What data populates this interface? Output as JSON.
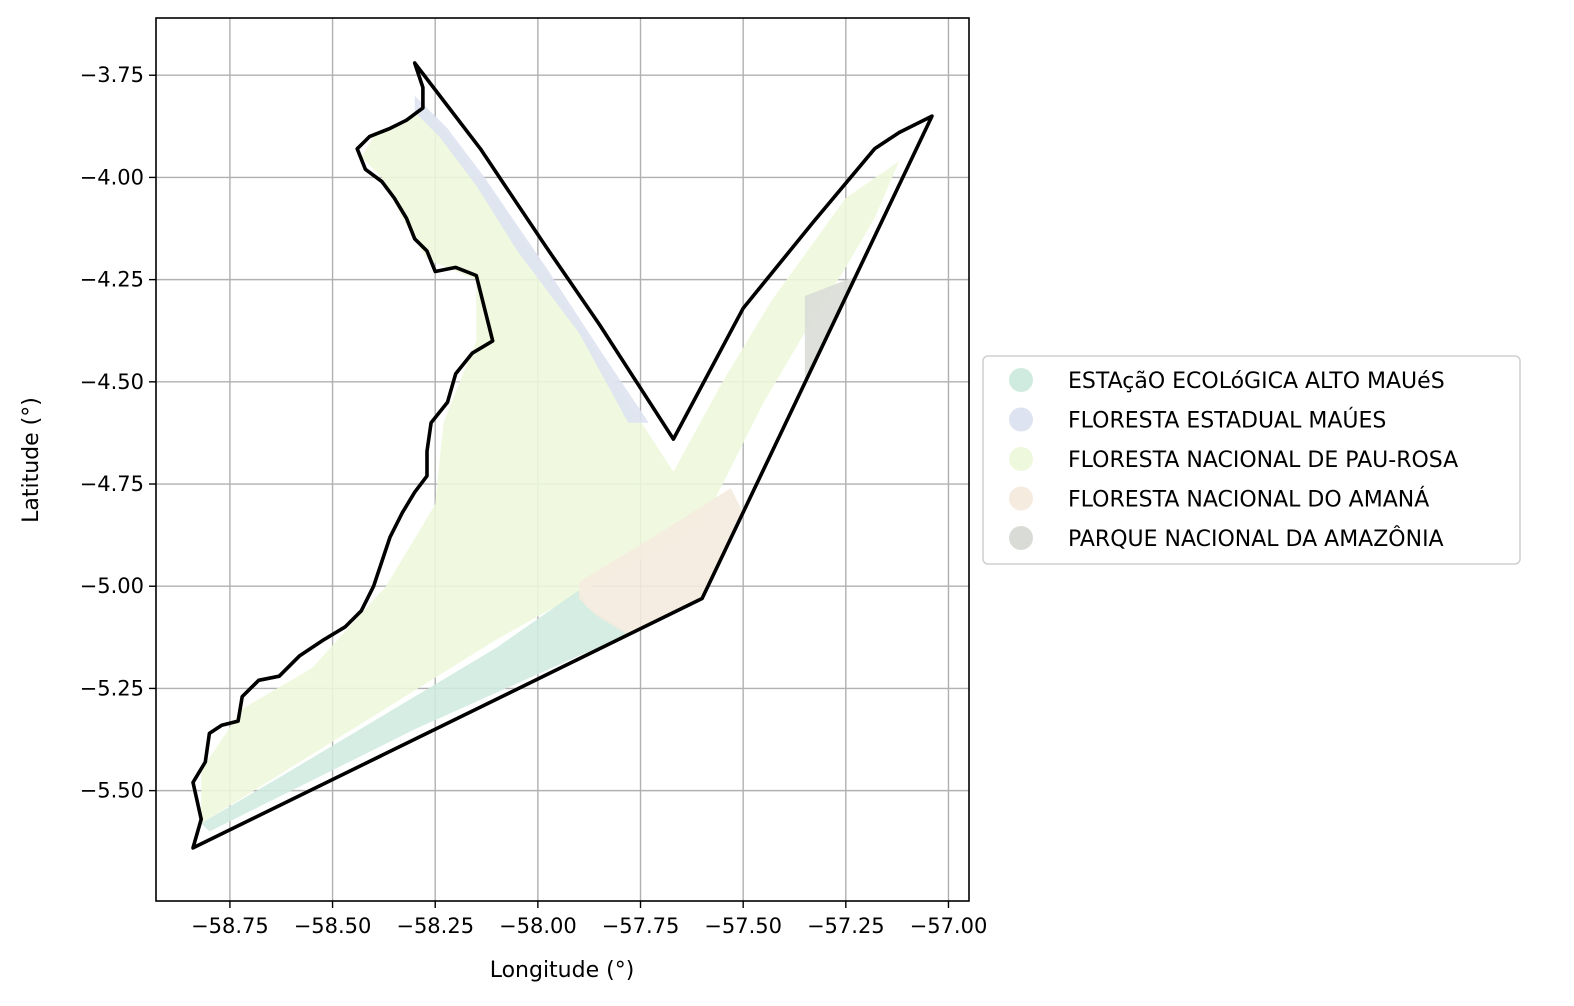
{
  "map": {
    "xlabel": "Longitude (°)",
    "ylabel": "Latitude (°)",
    "xlim": [
      -58.93,
      -56.95
    ],
    "ylim": [
      -5.77,
      -3.61
    ],
    "grid": true,
    "legend_placement": "center-right, outside plot",
    "x_ticks": [
      {
        "value": -58.75,
        "label": "−58.75"
      },
      {
        "value": -58.5,
        "label": "−58.50"
      },
      {
        "value": -58.25,
        "label": "−58.25"
      },
      {
        "value": -58.0,
        "label": "−58.00"
      },
      {
        "value": -57.75,
        "label": "−57.75"
      },
      {
        "value": -57.5,
        "label": "−57.50"
      },
      {
        "value": -57.25,
        "label": "−57.25"
      },
      {
        "value": -57.0,
        "label": "−57.00"
      }
    ],
    "y_ticks": [
      {
        "value": -3.75,
        "label": "−3.75"
      },
      {
        "value": -4.0,
        "label": "−4.00"
      },
      {
        "value": -4.25,
        "label": "−4.25"
      },
      {
        "value": -4.5,
        "label": "−4.50"
      },
      {
        "value": -4.75,
        "label": "−4.75"
      },
      {
        "value": -5.0,
        "label": "−5.00"
      },
      {
        "value": -5.25,
        "label": "−5.25"
      },
      {
        "value": -5.5,
        "label": "−5.50"
      }
    ],
    "areas": [
      {
        "name": "FLORESTA NACIONAL DE PAU-ROSA",
        "color": "#eef8dc",
        "polygon": [
          [
            -58.27,
            -3.83
          ],
          [
            -58.4,
            -3.9
          ],
          [
            -58.43,
            -3.95
          ],
          [
            -58.38,
            -4.0
          ],
          [
            -58.33,
            -4.1
          ],
          [
            -58.27,
            -4.2
          ],
          [
            -58.15,
            -4.25
          ],
          [
            -58.15,
            -4.4
          ],
          [
            -58.23,
            -4.6
          ],
          [
            -58.25,
            -4.8
          ],
          [
            -58.37,
            -5.0
          ],
          [
            -58.55,
            -5.2
          ],
          [
            -58.72,
            -5.3
          ],
          [
            -58.82,
            -5.45
          ],
          [
            -58.82,
            -5.58
          ],
          [
            -58.1,
            -5.13
          ],
          [
            -57.6,
            -4.85
          ],
          [
            -57.45,
            -4.55
          ],
          [
            -57.35,
            -4.38
          ],
          [
            -57.25,
            -4.22
          ],
          [
            -57.18,
            -4.1
          ],
          [
            -57.12,
            -3.96
          ],
          [
            -57.25,
            -4.05
          ],
          [
            -57.43,
            -4.3
          ],
          [
            -57.55,
            -4.5
          ],
          [
            -57.67,
            -4.72
          ],
          [
            -57.78,
            -4.55
          ],
          [
            -57.95,
            -4.28
          ],
          [
            -58.1,
            -4.05
          ],
          [
            -58.23,
            -3.88
          ]
        ]
      },
      {
        "name": "FLORESTA ESTADUAL MAÚES",
        "color": "#dde3f0",
        "polygon": [
          [
            -58.3,
            -3.8
          ],
          [
            -58.22,
            -3.88
          ],
          [
            -58.13,
            -4.0
          ],
          [
            -57.98,
            -4.22
          ],
          [
            -57.85,
            -4.42
          ],
          [
            -57.73,
            -4.6
          ],
          [
            -57.78,
            -4.6
          ],
          [
            -57.9,
            -4.38
          ],
          [
            -58.05,
            -4.18
          ],
          [
            -58.15,
            -4.02
          ],
          [
            -58.24,
            -3.9
          ],
          [
            -58.3,
            -3.84
          ]
        ]
      },
      {
        "name": "ESTAçãO ECOLóGICA ALTO MAUéS",
        "color": "#cfebdf",
        "polygon": [
          [
            -58.82,
            -5.58
          ],
          [
            -58.6,
            -5.45
          ],
          [
            -58.35,
            -5.3
          ],
          [
            -58.1,
            -5.15
          ],
          [
            -57.9,
            -5.01
          ],
          [
            -57.88,
            -5.05
          ],
          [
            -57.8,
            -5.1
          ],
          [
            -57.78,
            -5.12
          ],
          [
            -57.9,
            -5.17
          ],
          [
            -58.3,
            -5.35
          ],
          [
            -58.8,
            -5.6
          ]
        ]
      },
      {
        "name": "FLORESTA NACIONAL DO AMANÁ",
        "color": "#f5ebde",
        "polygon": [
          [
            -57.9,
            -4.99
          ],
          [
            -57.72,
            -4.88
          ],
          [
            -57.53,
            -4.76
          ],
          [
            -57.5,
            -4.82
          ],
          [
            -57.6,
            -5.03
          ],
          [
            -57.78,
            -5.12
          ],
          [
            -57.86,
            -5.07
          ],
          [
            -57.9,
            -5.03
          ]
        ]
      },
      {
        "name": "PARQUE NACIONAL DA AMAZÔNIA",
        "color": "#d9dcd6",
        "polygon": [
          [
            -57.35,
            -4.29
          ],
          [
            -57.22,
            -4.24
          ],
          [
            -57.35,
            -4.5
          ]
        ]
      }
    ],
    "boundary": [
      [
        -58.84,
        -5.64
      ],
      [
        -58.82,
        -5.57
      ],
      [
        -58.84,
        -5.48
      ],
      [
        -58.81,
        -5.43
      ],
      [
        -58.8,
        -5.36
      ],
      [
        -58.77,
        -5.34
      ],
      [
        -58.73,
        -5.33
      ],
      [
        -58.72,
        -5.27
      ],
      [
        -58.68,
        -5.23
      ],
      [
        -58.63,
        -5.22
      ],
      [
        -58.58,
        -5.17
      ],
      [
        -58.52,
        -5.13
      ],
      [
        -58.47,
        -5.1
      ],
      [
        -58.43,
        -5.06
      ],
      [
        -58.4,
        -5.0
      ],
      [
        -58.38,
        -4.94
      ],
      [
        -58.36,
        -4.88
      ],
      [
        -58.33,
        -4.82
      ],
      [
        -58.3,
        -4.77
      ],
      [
        -58.27,
        -4.73
      ],
      [
        -58.27,
        -4.67
      ],
      [
        -58.26,
        -4.6
      ],
      [
        -58.22,
        -4.55
      ],
      [
        -58.2,
        -4.48
      ],
      [
        -58.16,
        -4.43
      ],
      [
        -58.11,
        -4.4
      ],
      [
        -58.12,
        -4.36
      ],
      [
        -58.15,
        -4.24
      ],
      [
        -58.2,
        -4.22
      ],
      [
        -58.25,
        -4.23
      ],
      [
        -58.27,
        -4.18
      ],
      [
        -58.3,
        -4.15
      ],
      [
        -58.32,
        -4.1
      ],
      [
        -58.35,
        -4.05
      ],
      [
        -58.38,
        -4.01
      ],
      [
        -58.42,
        -3.98
      ],
      [
        -58.44,
        -3.93
      ],
      [
        -58.41,
        -3.9
      ],
      [
        -58.36,
        -3.88
      ],
      [
        -58.32,
        -3.86
      ],
      [
        -58.28,
        -3.83
      ],
      [
        -58.28,
        -3.78
      ],
      [
        -58.3,
        -3.72
      ],
      [
        -58.14,
        -3.93
      ],
      [
        -58.08,
        -4.02
      ],
      [
        -57.98,
        -4.17
      ],
      [
        -57.85,
        -4.36
      ],
      [
        -57.67,
        -4.64
      ],
      [
        -57.5,
        -4.32
      ],
      [
        -57.33,
        -4.11
      ],
      [
        -57.18,
        -3.93
      ],
      [
        -57.12,
        -3.89
      ],
      [
        -57.04,
        -3.85
      ],
      [
        -57.6,
        -5.03
      ],
      [
        -58.84,
        -5.64
      ]
    ]
  },
  "legend": {
    "items": [
      {
        "label": "ESTAçãO ECOLóGICA ALTO MAUéS",
        "color": "#cfebdf"
      },
      {
        "label": "FLORESTA ESTADUAL MAÚES",
        "color": "#dde3f0"
      },
      {
        "label": "FLORESTA NACIONAL DE PAU-ROSA",
        "color": "#eef8dc"
      },
      {
        "label": "FLORESTA NACIONAL DO AMANÁ",
        "color": "#f5ebde"
      },
      {
        "label": "PARQUE NACIONAL DA AMAZÔNIA",
        "color": "#d9dcd6"
      }
    ]
  }
}
